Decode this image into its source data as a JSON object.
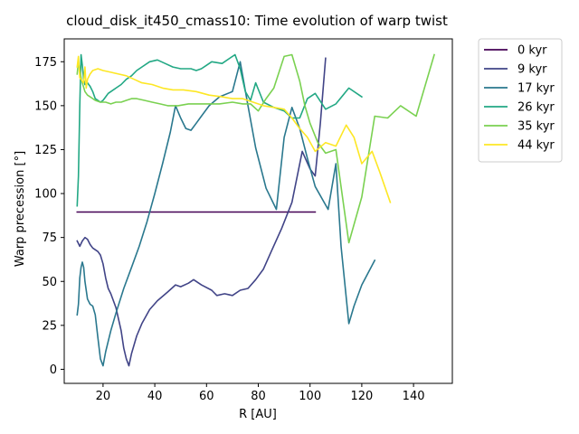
{
  "chart_data": {
    "type": "line",
    "title": "cloud_disk_it450_cmass10: Time evolution of warp twist",
    "xlabel": "R [AU]",
    "ylabel": "Warp precession [°]",
    "xlim": [
      5,
      155
    ],
    "ylim": [
      -8,
      188
    ],
    "xticks": [
      20,
      40,
      60,
      80,
      100,
      120,
      140
    ],
    "yticks": [
      0,
      25,
      50,
      75,
      100,
      125,
      150,
      175
    ],
    "grid": false,
    "legend_position": "outside-top-right",
    "series": [
      {
        "name": "0 kyr",
        "color": "#440154",
        "x": [
          10,
          102
        ],
        "y": [
          89.5,
          89.5
        ]
      },
      {
        "name": "9 kyr",
        "color": "#414487",
        "x": [
          10,
          11,
          12,
          13,
          14,
          15,
          16,
          18,
          19,
          20,
          21,
          22,
          23,
          25,
          27,
          28,
          29,
          30,
          31,
          33,
          35,
          38,
          41,
          45,
          48,
          50,
          53,
          55,
          58,
          62,
          64,
          67,
          70,
          73,
          76,
          79,
          82,
          85,
          89,
          93,
          97,
          100,
          102,
          104,
          106
        ],
        "y": [
          73,
          70,
          73,
          75,
          74,
          71,
          69,
          67,
          65,
          60,
          52,
          46,
          43,
          35,
          22,
          12,
          6,
          2,
          9,
          19,
          26,
          34,
          39,
          44,
          48,
          47,
          49,
          51,
          48,
          45,
          42,
          43,
          42,
          45,
          46,
          51,
          57,
          67,
          80,
          95,
          124,
          114,
          110,
          140,
          177
        ]
      },
      {
        "name": "17 kyr",
        "color": "#2a788e",
        "x": [
          10,
          10.5,
          11,
          11.5,
          12,
          12.5,
          13,
          14,
          15,
          16,
          17,
          18,
          19,
          20,
          21,
          23,
          25,
          28,
          31,
          34,
          37,
          40,
          43,
          46,
          48,
          50,
          52,
          54,
          56,
          58,
          61,
          65,
          70,
          73,
          76,
          79,
          83,
          87,
          90,
          93,
          96,
          99,
          102,
          107,
          110,
          112,
          115,
          117,
          120,
          125
        ],
        "y": [
          31,
          37,
          52,
          58,
          61,
          58,
          50,
          40,
          37,
          36,
          31,
          18,
          6,
          2,
          10,
          22,
          32,
          46,
          58,
          70,
          84,
          100,
          117,
          135,
          150,
          143,
          137,
          136,
          140,
          144,
          150,
          155,
          158,
          175,
          150,
          126,
          103,
          91,
          132,
          149,
          137,
          120,
          104,
          91,
          117,
          70,
          26,
          36,
          48,
          62
        ]
      },
      {
        "name": "26 kyr",
        "color": "#22a884",
        "x": [
          10,
          10.5,
          11,
          11.5,
          12,
          12.5,
          13,
          14,
          15,
          16,
          17,
          18,
          19,
          20,
          21,
          22,
          23,
          25,
          27,
          29,
          31,
          33,
          35,
          38,
          41,
          44,
          47,
          50,
          54,
          56,
          58,
          60,
          62,
          66,
          69,
          71,
          73,
          75,
          77,
          79,
          82,
          86,
          90,
          93,
          96,
          99,
          102,
          106,
          110,
          115,
          120
        ],
        "y": [
          93,
          110,
          150,
          179,
          173,
          165,
          162,
          163,
          161,
          158,
          154,
          153,
          152,
          153,
          155,
          157,
          158,
          160,
          162,
          165,
          167,
          170,
          172,
          175,
          176,
          174,
          172,
          171,
          171,
          170,
          171,
          173,
          175,
          174,
          177,
          179,
          171,
          158,
          153,
          163,
          152,
          149,
          147,
          143,
          143,
          154,
          157,
          148,
          151,
          160,
          155
        ]
      },
      {
        "name": "35 kyr",
        "color": "#7ad151",
        "x": [
          10,
          10.5,
          11,
          11.5,
          12,
          13,
          14,
          15,
          17,
          19,
          21,
          23,
          25,
          27,
          29,
          31,
          33,
          36,
          39,
          42,
          45,
          49,
          53,
          57,
          61,
          65,
          70,
          74,
          77,
          80,
          83,
          86,
          90,
          93,
          96,
          98,
          100,
          103,
          106,
          110,
          115,
          120,
          125,
          130,
          135,
          141,
          148
        ],
        "y": [
          168,
          175,
          170,
          166,
          163,
          158,
          156,
          155,
          153,
          152,
          152,
          151,
          152,
          152,
          153,
          154,
          154,
          153,
          152,
          151,
          150,
          150,
          151,
          151,
          151,
          151,
          152,
          151,
          151,
          147,
          154,
          160,
          178,
          179,
          164,
          150,
          140,
          129,
          123,
          125,
          72,
          98,
          144,
          143,
          150,
          144,
          179
        ]
      },
      {
        "name": "44 kyr",
        "color": "#fde725",
        "x": [
          10,
          10.5,
          11,
          11.5,
          12,
          12.5,
          13,
          13.5,
          14,
          15,
          16,
          18,
          20,
          23,
          26,
          29,
          32,
          35,
          39,
          43,
          47,
          51,
          56,
          61,
          66,
          70,
          74,
          78,
          82,
          86,
          90,
          93,
          96,
          99,
          102,
          106,
          110,
          114,
          117,
          120,
          124,
          127,
          131
        ],
        "y": [
          172,
          178,
          166,
          165,
          164,
          163,
          172,
          160,
          165,
          168,
          170,
          171,
          170,
          169,
          168,
          167,
          165,
          163,
          162,
          160,
          159,
          159,
          158,
          156,
          155,
          154,
          154,
          152,
          150,
          149,
          148,
          143,
          137,
          132,
          124,
          129,
          127,
          139,
          132,
          117,
          124,
          112,
          95
        ]
      }
    ]
  }
}
